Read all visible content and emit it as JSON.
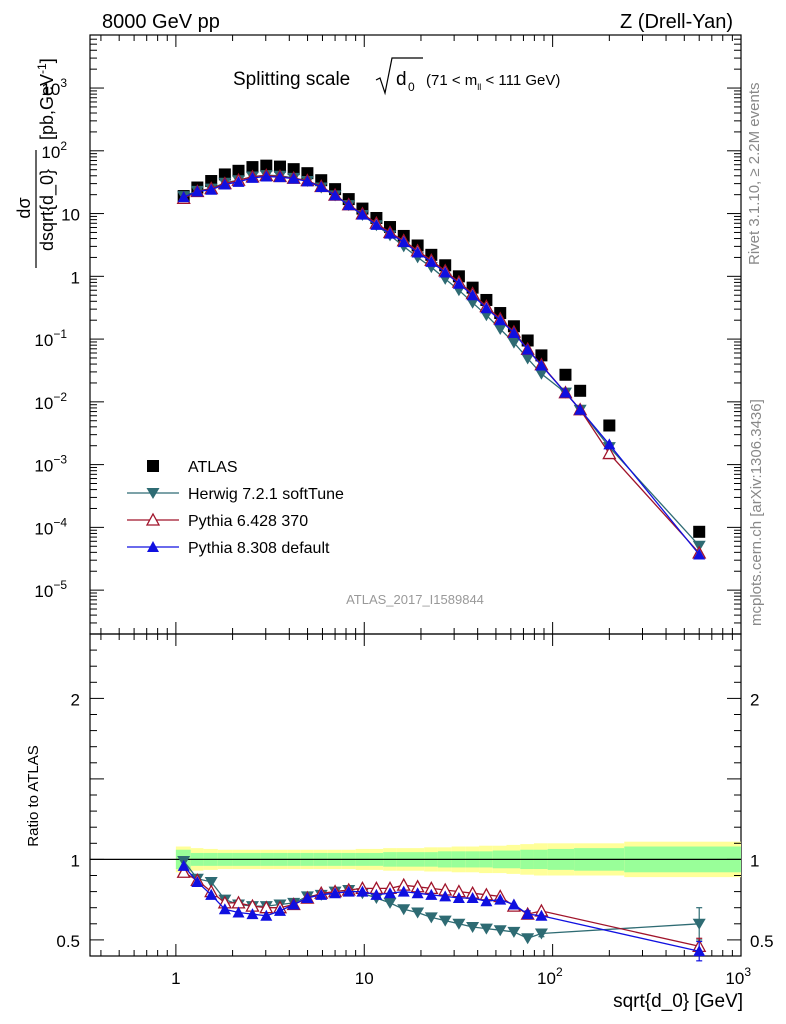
{
  "header": {
    "left": "8000 GeV pp",
    "right": "Z (Drell-Yan)"
  },
  "plot_title": {
    "main": "Splitting scale",
    "symbol": "d",
    "subscript": "0",
    "range_open": "(71 < m",
    "range_sub": "ll",
    "range_close": " < 111 GeV)"
  },
  "side_labels": {
    "rivet": "Rivet 3.1.10, ≥ 2.2M events",
    "mcplots": "mcplots.cern.ch [arXiv:1306.3436]"
  },
  "watermark": "ATLAS_2017_I1589844",
  "axes": {
    "top_ylabel_num": "dσ",
    "top_ylabel_den": "dsqrt{d_0}",
    "top_ylabel_unit": "[pb,GeV",
    "top_ylabel_unit_sup": "-1",
    "top_ylabel_unit_close": "]",
    "ratio_ylabel": "Ratio to ATLAS",
    "xlabel": "sqrt{d_0} [GeV]"
  },
  "colors": {
    "atlas": "#000000",
    "herwig": "#2e6b73",
    "pythia6": "#a0142b",
    "pythia8": "#1010e0",
    "band_inner": "#99ff99",
    "band_outer": "#ffff99"
  },
  "chart_data": [
    {
      "type": "scatter",
      "name": "main",
      "x_scale": "log",
      "y_scale": "log",
      "xlim": [
        0.35,
        1000
      ],
      "ylim": [
        2e-06,
        7000
      ],
      "x_ticks": [
        {
          "v": 1,
          "label": "1"
        },
        {
          "v": 10,
          "label": "10"
        },
        {
          "v": 100,
          "label": "10",
          "sup": "2"
        },
        {
          "v": 1000,
          "label": "10",
          "sup": "3"
        }
      ],
      "y_ticks": [
        {
          "v": 1000,
          "label": "10",
          "sup": "3"
        },
        {
          "v": 100,
          "label": "10",
          "sup": "2"
        },
        {
          "v": 10,
          "label": "10",
          "sup": ""
        },
        {
          "v": 1,
          "label": "1",
          "sup": ""
        },
        {
          "v": 0.1,
          "label": "10",
          "sup": "−1"
        },
        {
          "v": 0.01,
          "label": "10",
          "sup": "−2"
        },
        {
          "v": 0.001,
          "label": "10",
          "sup": "−3"
        },
        {
          "v": 0.0001,
          "label": "10",
          "sup": "−4"
        },
        {
          "v": 1e-05,
          "label": "10",
          "sup": "−5"
        }
      ],
      "series": [
        {
          "name": "ATLAS",
          "marker": "square",
          "x": [
            1.1,
            1.3,
            1.54,
            1.82,
            2.15,
            2.55,
            3.02,
            3.57,
            4.22,
            4.99,
            5.91,
            7.0,
            8.27,
            9.78,
            11.6,
            13.7,
            16.2,
            19.2,
            22.7,
            26.9,
            31.8,
            37.6,
            44.5,
            52.7,
            62.3,
            73.7,
            87.2,
            117,
            140,
            200,
            600
          ],
          "y": [
            19,
            26,
            33,
            42,
            48,
            55,
            58,
            56,
            51,
            44,
            34,
            24.5,
            17,
            12,
            8.5,
            6.1,
            4.4,
            3.1,
            2.2,
            1.5,
            1.0,
            0.66,
            0.42,
            0.26,
            0.16,
            0.095,
            0.055,
            0.027,
            0.015,
            0.0042,
            8.5e-05
          ]
        },
        {
          "name": "Herwig 7.2.1 softTune",
          "marker": "triangle-down",
          "x": [
            1.1,
            1.3,
            1.54,
            1.82,
            2.15,
            2.55,
            3.02,
            3.57,
            4.22,
            4.99,
            5.91,
            7.0,
            8.27,
            9.78,
            11.6,
            13.7,
            16.2,
            19.2,
            22.7,
            26.9,
            31.8,
            37.6,
            44.5,
            52.7,
            62.3,
            73.7,
            87.2,
            117,
            140,
            200,
            600
          ],
          "y": [
            19,
            23,
            25,
            31,
            34,
            39,
            41,
            40,
            37,
            33,
            26,
            19.5,
            13.6,
            9.5,
            6.5,
            4.5,
            3.0,
            2.0,
            1.4,
            0.91,
            0.6,
            0.38,
            0.24,
            0.145,
            0.088,
            0.049,
            0.028,
            0.014,
            0.0075,
            0.0019,
            5.1e-05
          ]
        },
        {
          "name": "Pythia 6.428 370",
          "marker": "triangle-up-open",
          "x": [
            1.1,
            1.3,
            1.54,
            1.82,
            2.15,
            2.55,
            3.02,
            3.57,
            4.22,
            4.99,
            5.91,
            7.0,
            8.27,
            9.78,
            11.6,
            13.7,
            16.2,
            19.2,
            22.7,
            26.9,
            31.8,
            37.6,
            44.5,
            52.7,
            62.3,
            73.7,
            87.2,
            117,
            140,
            200,
            600
          ],
          "y": [
            17.5,
            22.5,
            25,
            30,
            34,
            38.5,
            40.5,
            39,
            36.5,
            33.5,
            27,
            19.7,
            13.8,
            9.9,
            7.0,
            5.0,
            3.7,
            2.55,
            1.8,
            1.22,
            0.81,
            0.53,
            0.33,
            0.21,
            0.13,
            0.069,
            0.039,
            0.014,
            0.0075,
            0.0015,
            3.9e-05
          ]
        },
        {
          "name": "Pythia 8.308 default",
          "marker": "triangle-up",
          "x": [
            1.1,
            1.3,
            1.54,
            1.82,
            2.15,
            2.55,
            3.02,
            3.57,
            4.22,
            4.99,
            5.91,
            7.0,
            8.27,
            9.78,
            11.6,
            13.7,
            16.2,
            19.2,
            22.7,
            26.9,
            31.8,
            37.6,
            44.5,
            52.7,
            62.3,
            73.7,
            87.2,
            117,
            140,
            200,
            600
          ],
          "y": [
            18.3,
            22.5,
            24,
            29,
            32,
            37,
            39,
            38,
            36,
            32.5,
            26.5,
            19.5,
            13.6,
            9.6,
            6.6,
            4.8,
            3.5,
            2.4,
            1.7,
            1.15,
            0.76,
            0.5,
            0.31,
            0.2,
            0.125,
            0.068,
            0.038,
            0.014,
            0.0075,
            0.0021,
            3.7e-05
          ]
        }
      ]
    },
    {
      "type": "scatter",
      "name": "ratio",
      "x_scale": "log",
      "xlim": [
        0.35,
        1000
      ],
      "ylim": [
        0.4,
        2.4
      ],
      "y_ticks": [
        {
          "v": 0.5,
          "label": "0.5"
        },
        {
          "v": 1,
          "label": "1"
        },
        {
          "v": 2,
          "label": "2"
        }
      ],
      "band_edges": [
        1.0,
        1.2,
        1.4,
        1.67,
        2.0,
        2.4,
        2.8,
        3.3,
        3.9,
        4.6,
        5.4,
        6.4,
        7.6,
        9.0,
        10.6,
        12.6,
        14.9,
        17.6,
        20.8,
        24.6,
        29.1,
        34.4,
        40.7,
        48.1,
        56.9,
        67.3,
        79.6,
        94.1,
        130,
        240,
        1000
      ],
      "band_inner": [
        0.06,
        0.04,
        0.04,
        0.04,
        0.04,
        0.04,
        0.04,
        0.04,
        0.04,
        0.04,
        0.04,
        0.04,
        0.04,
        0.04,
        0.04,
        0.045,
        0.045,
        0.045,
        0.045,
        0.05,
        0.05,
        0.05,
        0.05,
        0.055,
        0.055,
        0.06,
        0.06,
        0.065,
        0.07,
        0.08,
        0.09
      ],
      "band_outer": [
        0.08,
        0.07,
        0.065,
        0.06,
        0.06,
        0.06,
        0.06,
        0.06,
        0.06,
        0.06,
        0.06,
        0.06,
        0.06,
        0.065,
        0.065,
        0.07,
        0.07,
        0.07,
        0.075,
        0.075,
        0.08,
        0.08,
        0.085,
        0.085,
        0.09,
        0.095,
        0.1,
        0.1,
        0.1,
        0.11,
        0.16
      ],
      "series": [
        {
          "name": "Herwig 7.2.1 softTune",
          "marker": "triangle-down",
          "x": [
            1.1,
            1.3,
            1.54,
            1.82,
            2.15,
            2.55,
            3.02,
            3.57,
            4.22,
            4.99,
            5.91,
            7.0,
            8.27,
            9.78,
            11.6,
            13.7,
            16.2,
            19.2,
            22.7,
            26.9,
            31.8,
            37.6,
            44.5,
            52.7,
            62.3,
            73.7,
            87.2,
            600
          ],
          "y": [
            0.99,
            0.88,
            0.86,
            0.75,
            0.72,
            0.71,
            0.71,
            0.72,
            0.73,
            0.77,
            0.78,
            0.8,
            0.81,
            0.79,
            0.76,
            0.73,
            0.69,
            0.67,
            0.64,
            0.62,
            0.6,
            0.58,
            0.57,
            0.56,
            0.55,
            0.51,
            0.54,
            0.6
          ],
          "err": [
            0,
            0,
            0,
            0,
            0,
            0,
            0,
            0,
            0,
            0,
            0,
            0,
            0,
            0,
            0,
            0,
            0,
            0,
            0,
            0,
            0,
            0,
            0,
            0,
            0,
            0,
            0.02,
            0.1
          ]
        },
        {
          "name": "Pythia 6.428 370",
          "marker": "triangle-up-open",
          "x": [
            1.1,
            1.3,
            1.54,
            1.82,
            2.15,
            2.55,
            3.02,
            3.57,
            4.22,
            4.99,
            5.91,
            7.0,
            8.27,
            9.78,
            11.6,
            13.7,
            16.2,
            19.2,
            22.7,
            26.9,
            31.8,
            37.6,
            44.5,
            52.7,
            62.3,
            73.7,
            87.2,
            600
          ],
          "y": [
            0.92,
            0.87,
            0.8,
            0.73,
            0.73,
            0.71,
            0.7,
            0.7,
            0.72,
            0.76,
            0.79,
            0.8,
            0.81,
            0.82,
            0.82,
            0.82,
            0.84,
            0.83,
            0.82,
            0.81,
            0.8,
            0.79,
            0.78,
            0.77,
            0.71,
            0.66,
            0.68,
            0.46
          ],
          "err": [
            0,
            0,
            0,
            0,
            0,
            0,
            0,
            0,
            0,
            0,
            0,
            0,
            0,
            0,
            0,
            0,
            0,
            0,
            0,
            0,
            0,
            0,
            0,
            0,
            0,
            0.02,
            0,
            0.05
          ]
        },
        {
          "name": "Pythia 8.308 default",
          "marker": "triangle-up",
          "x": [
            1.1,
            1.3,
            1.54,
            1.82,
            2.15,
            2.55,
            3.02,
            3.57,
            4.22,
            4.99,
            5.91,
            7.0,
            8.27,
            9.78,
            11.6,
            13.7,
            16.2,
            19.2,
            22.7,
            26.9,
            31.8,
            37.6,
            44.5,
            52.7,
            62.3,
            73.7,
            87.2,
            600
          ],
          "y": [
            0.96,
            0.86,
            0.78,
            0.69,
            0.67,
            0.66,
            0.65,
            0.68,
            0.72,
            0.76,
            0.78,
            0.79,
            0.8,
            0.8,
            0.78,
            0.79,
            0.8,
            0.79,
            0.78,
            0.77,
            0.76,
            0.76,
            0.74,
            0.75,
            0.72,
            0.66,
            0.65,
            0.43
          ],
          "err": [
            0,
            0,
            0,
            0,
            0,
            0,
            0,
            0,
            0,
            0,
            0,
            0,
            0,
            0,
            0,
            0,
            0,
            0,
            0,
            0,
            0,
            0,
            0,
            0,
            0,
            0.02,
            0,
            0.06
          ]
        }
      ]
    }
  ],
  "legend": [
    {
      "label": "ATLAS",
      "marker": "square"
    },
    {
      "label": "Herwig 7.2.1 softTune",
      "marker": "triangle-down"
    },
    {
      "label": "Pythia 6.428 370",
      "marker": "triangle-up-open"
    },
    {
      "label": "Pythia 8.308 default",
      "marker": "triangle-up"
    }
  ]
}
